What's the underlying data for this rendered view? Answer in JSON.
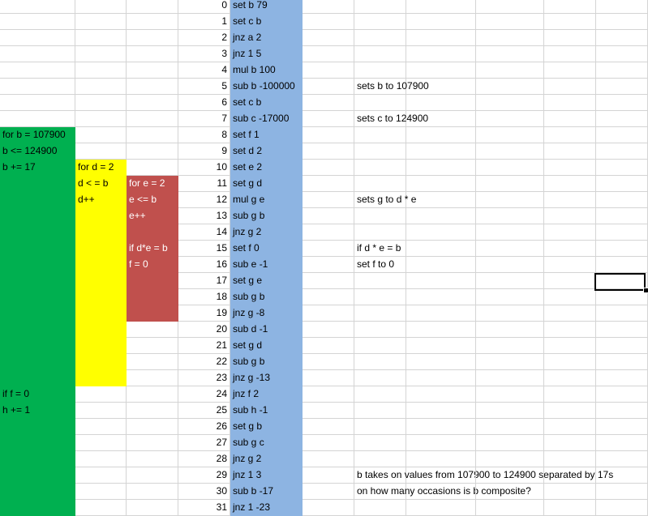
{
  "rows": [
    {
      "n": "0",
      "cmd": "set b 79",
      "note": "",
      "a": "",
      "b": "",
      "c": ""
    },
    {
      "n": "1",
      "cmd": "set c b",
      "note": "",
      "a": "",
      "b": "",
      "c": ""
    },
    {
      "n": "2",
      "cmd": "jnz a 2",
      "note": "",
      "a": "",
      "b": "",
      "c": ""
    },
    {
      "n": "3",
      "cmd": "jnz 1 5",
      "note": "",
      "a": "",
      "b": "",
      "c": ""
    },
    {
      "n": "4",
      "cmd": "mul b 100",
      "note": "",
      "a": "",
      "b": "",
      "c": ""
    },
    {
      "n": "5",
      "cmd": "sub b -100000",
      "note": "sets b to 107900",
      "a": "",
      "b": "",
      "c": ""
    },
    {
      "n": "6",
      "cmd": "set c b",
      "note": "",
      "a": "",
      "b": "",
      "c": ""
    },
    {
      "n": "7",
      "cmd": "sub c -17000",
      "note": "sets c to 124900",
      "a": "",
      "b": "",
      "c": ""
    },
    {
      "n": "8",
      "cmd": "set f 1",
      "note": "",
      "a": "for b = 107900",
      "b": "",
      "c": ""
    },
    {
      "n": "9",
      "cmd": "set d 2",
      "note": "",
      "a": "b <= 124900",
      "b": "",
      "c": ""
    },
    {
      "n": "10",
      "cmd": "set e 2",
      "note": "",
      "a": "b += 17",
      "b": "for d = 2",
      "c": ""
    },
    {
      "n": "11",
      "cmd": "set g d",
      "note": "",
      "a": "",
      "b": "d < = b",
      "c": "for e = 2"
    },
    {
      "n": "12",
      "cmd": "mul g e",
      "note": "sets g to d * e",
      "a": "",
      "b": "d++",
      "c": "e <= b"
    },
    {
      "n": "13",
      "cmd": "sub g b",
      "note": "",
      "a": "",
      "b": "",
      "c": "e++"
    },
    {
      "n": "14",
      "cmd": "jnz g 2",
      "note": "",
      "a": "",
      "b": "",
      "c": ""
    },
    {
      "n": "15",
      "cmd": "set f 0",
      "note": "if d * e = b",
      "a": "",
      "b": "",
      "c": "if d*e = b"
    },
    {
      "n": "16",
      "cmd": "sub e -1",
      "note": "set f to 0",
      "a": "",
      "b": "",
      "c": "f = 0"
    },
    {
      "n": "17",
      "cmd": "set g e",
      "note": "",
      "a": "",
      "b": "",
      "c": ""
    },
    {
      "n": "18",
      "cmd": "sub g b",
      "note": "",
      "a": "",
      "b": "",
      "c": ""
    },
    {
      "n": "19",
      "cmd": "jnz g -8",
      "note": "",
      "a": "",
      "b": "",
      "c": ""
    },
    {
      "n": "20",
      "cmd": "sub d -1",
      "note": "",
      "a": "",
      "b": "",
      "c": ""
    },
    {
      "n": "21",
      "cmd": "set g d",
      "note": "",
      "a": "",
      "b": "",
      "c": ""
    },
    {
      "n": "22",
      "cmd": "sub g b",
      "note": "",
      "a": "",
      "b": "",
      "c": ""
    },
    {
      "n": "23",
      "cmd": "jnz g -13",
      "note": "",
      "a": "",
      "b": "",
      "c": ""
    },
    {
      "n": "24",
      "cmd": "jnz f 2",
      "note": "",
      "a": "if f = 0",
      "b": "",
      "c": ""
    },
    {
      "n": "25",
      "cmd": "sub h -1",
      "note": "",
      "a": "h += 1",
      "b": "",
      "c": ""
    },
    {
      "n": "26",
      "cmd": "set g b",
      "note": "",
      "a": "",
      "b": "",
      "c": ""
    },
    {
      "n": "27",
      "cmd": "sub g c",
      "note": "",
      "a": "",
      "b": "",
      "c": ""
    },
    {
      "n": "28",
      "cmd": "jnz g 2",
      "note": "",
      "a": "",
      "b": "",
      "c": ""
    },
    {
      "n": "29",
      "cmd": "jnz 1 3",
      "note": "b takes on values from 107900 to 124900 separated by 17s",
      "a": "",
      "b": "",
      "c": ""
    },
    {
      "n": "30",
      "cmd": "sub b -17",
      "note": "on how many occasions is b composite?",
      "a": "",
      "b": "",
      "c": ""
    },
    {
      "n": "31",
      "cmd": "jnz 1 -23",
      "note": "",
      "a": "",
      "b": "",
      "c": ""
    }
  ],
  "colors": {
    "green": "#00b050",
    "yellow": "#ffff00",
    "red": "#c0504d",
    "blue": "#8db4e2",
    "gridline": "#d4d4d4"
  }
}
